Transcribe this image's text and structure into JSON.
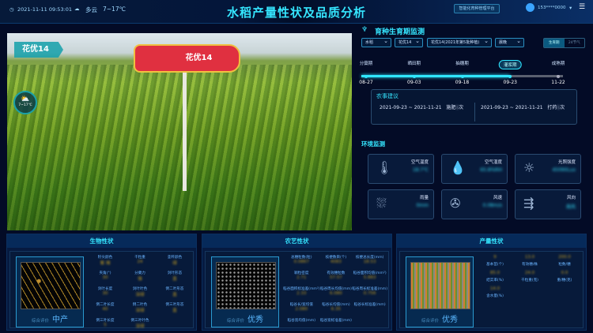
{
  "header": {
    "datetime": "2021-11-11 09:53:01",
    "weather": "多云",
    "temp": "7~17℃",
    "title": "水稻产量性状及品质分析",
    "platform_button": "智能化育种管理平台",
    "user": "153****0000"
  },
  "photo": {
    "tag": "花优14",
    "sign": "花优14",
    "weather_temp": "7~17℃",
    "weather_icon": "partly-cloudy-icon"
  },
  "growth": {
    "title": "育种生育期监测",
    "selects": [
      "水稻",
      "花优14",
      "花优14(2021年第5批种植)",
      "晨晚"
    ],
    "toggle": [
      "生育期",
      "24节气"
    ],
    "progress_stage": "灌浆期",
    "stages": [
      {
        "name": "分蘖期",
        "date": "08-27"
      },
      {
        "name": "晒田期",
        "date": "09-03"
      },
      {
        "name": "抽穗期",
        "date": "09-18"
      },
      {
        "name": "灌浆期",
        "date": "09-23"
      },
      {
        "name": "成熟期",
        "date": "11-22"
      }
    ],
    "advice": {
      "title": "农事建议",
      "items": [
        {
          "range": "2021-09-23 ~ 2021-11-21",
          "action": "施肥",
          "count": "1",
          "unit": "次"
        },
        {
          "range": "2021-09-23 ~ 2021-11-21",
          "action": "打药",
          "count": "1",
          "unit": "次"
        }
      ]
    }
  },
  "env": {
    "title": "环境监测",
    "cards": [
      {
        "label": "空气温度",
        "value": "18.7℃",
        "icon": "thermometer-icon"
      },
      {
        "label": "空气湿度",
        "value": "65.8%RH",
        "icon": "humidity-icon"
      },
      {
        "label": "光照强度",
        "value": "45090Lux",
        "icon": "sun-icon"
      },
      {
        "label": "雨量",
        "value": "0mm",
        "icon": "rain-gauge-icon"
      },
      {
        "label": "风速",
        "value": "0.08m/s",
        "icon": "fan-icon"
      },
      {
        "label": "风向",
        "value": "南风",
        "icon": "wind-vane-icon"
      }
    ]
  },
  "bio": {
    "title": "生物性状",
    "eval_label": "综合评价",
    "eval": "中产",
    "items": [
      {
        "l": "籽尖颜色",
        "v": "紫 褐"
      },
      {
        "l": "千粒重",
        "v": "24"
      },
      {
        "l": "茎秆颜色",
        "v": "绿"
      },
      {
        "l": "夹角(°)",
        "v": "30"
      },
      {
        "l": "分蘖力",
        "v": "强"
      },
      {
        "l": "剑叶形态",
        "v": "直"
      },
      {
        "l": "剑叶长度",
        "v": "30"
      },
      {
        "l": "剑叶叶色",
        "v": "深绿"
      },
      {
        "l": "倒二叶形态",
        "v": "直"
      },
      {
        "l": "倒二叶长度",
        "v": "40"
      },
      {
        "l": "倒二叶色",
        "v": "深绿"
      },
      {
        "l": "倒三叶形态",
        "v": "直"
      },
      {
        "l": "倒三叶长度",
        "v": "5"
      },
      {
        "l": "倒三叶叶色",
        "v": "深绿"
      }
    ]
  },
  "agro": {
    "title": "农艺性状",
    "eval_label": "综合评价",
    "eval": "优秀",
    "items": [
      {
        "l": "总穗粒数(粒)",
        "v": "0.0867"
      },
      {
        "l": "枝梗数目(个)",
        "v": "4083"
      },
      {
        "l": "枝梗总长度(mm)",
        "v": "18.53"
      },
      {
        "l": "颖粒密度",
        "v": "2.71"
      },
      {
        "l": "有效穗粒数",
        "v": "57.57"
      },
      {
        "l": "稻谷面积均值(mm²)",
        "v": "5.883"
      },
      {
        "l": "稻谷面积标准差(mm²)",
        "v": "2.33"
      },
      {
        "l": "稻谷周长均值(mm)",
        "v": "6.080"
      },
      {
        "l": "稻谷周长标准差(mm)",
        "v": "0.756"
      },
      {
        "l": "稻谷长/宽均值",
        "v": "2.080"
      },
      {
        "l": "稻谷长均值(mm)",
        "v": "6.35"
      },
      {
        "l": "稻谷长标准差(mm)",
        "v": ""
      },
      {
        "l": "稻谷宽均值(mm)",
        "v": ""
      },
      {
        "l": "稻谷宽标准差(mm)",
        "v": ""
      }
    ]
  },
  "yield": {
    "title": "产量性状",
    "eval_label": "综合评价",
    "eval": "优秀",
    "items": [
      {
        "v": "9",
        "l": "基本苗(个)"
      },
      {
        "v": "13.0",
        "l": "有效穗/株"
      },
      {
        "v": "200.0",
        "l": "粒数/穗"
      },
      {
        "v": "85.0",
        "l": "结实率(%)"
      },
      {
        "v": "24.0",
        "l": "千粒重(克)"
      },
      {
        "v": "0.0",
        "l": "重/穗(克)"
      },
      {
        "v": "14.0",
        "l": "含水量(%)"
      }
    ]
  }
}
